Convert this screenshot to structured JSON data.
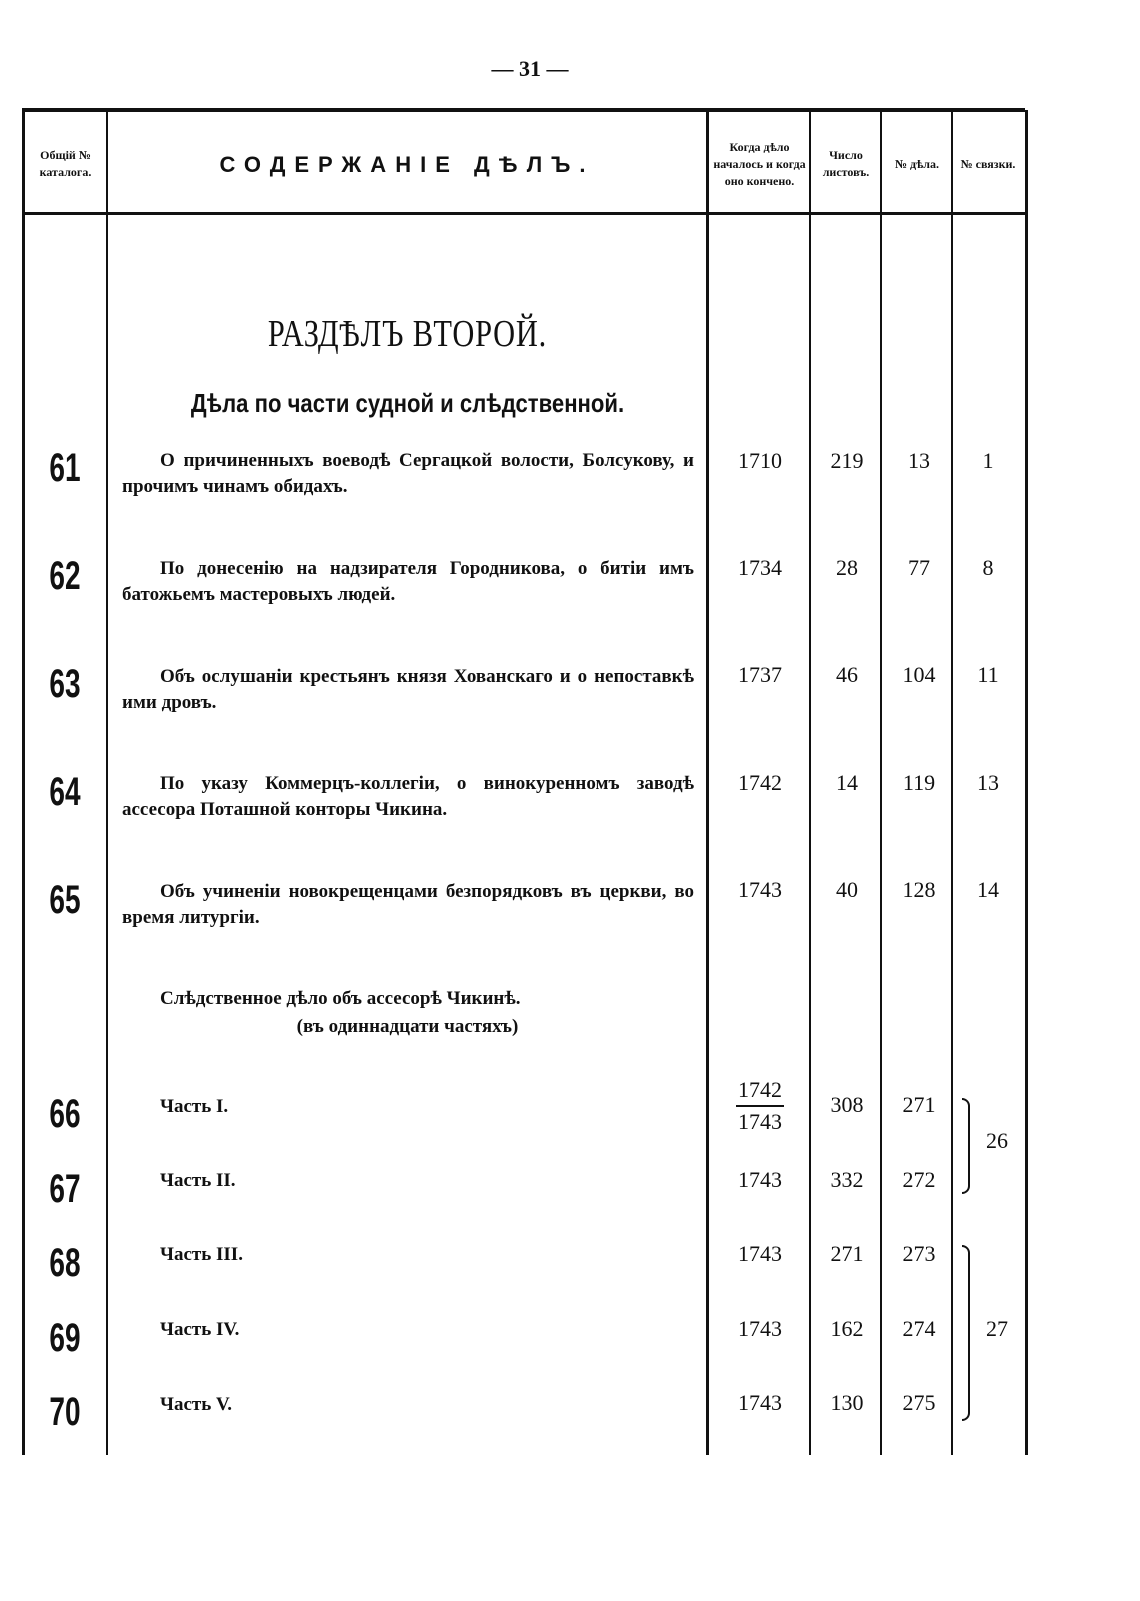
{
  "page_number": "— 31 —",
  "header": {
    "catalog_no": "Общій № каталога.",
    "content": "СОДЕРЖАНІЕ ДѢЛЪ.",
    "dates": "Когда дѣло началось и когда оно кончено.",
    "leaves": "Число листовъ.",
    "case_no": "№ дѣла.",
    "bundle_no": "№ связки."
  },
  "section": {
    "title": "РАЗДѢЛЪ ВТОРОЙ.",
    "subtitle": "Дѣла по части судной и слѣдственной."
  },
  "entries": [
    {
      "no": "61",
      "text": "О причиненныхъ воеводѣ Сергацкой волости, Болсукову, и прочимъ чинамъ обидахъ.",
      "dates": "1710",
      "leaves": "219",
      "case": "13",
      "bundle": "1"
    },
    {
      "no": "62",
      "text": "По донесенію на надзирателя Городникова, о битіи имъ батожьемъ мастеровыхъ людей.",
      "dates": "1734",
      "leaves": "28",
      "case": "77",
      "bundle": "8"
    },
    {
      "no": "63",
      "text": "Объ ослушаніи крестьянъ князя Хованскаго и о непоставкѣ ими дровъ.",
      "dates": "1737",
      "leaves": "46",
      "case": "104",
      "bundle": "11"
    },
    {
      "no": "64",
      "text": "По указу Коммерцъ-коллегіи, о винокуренномъ заводѣ ассесора Поташной конторы Чикина.",
      "dates": "1742",
      "leaves": "14",
      "case": "119",
      "bundle": "13"
    },
    {
      "no": "65",
      "text": "Объ учиненіи новокрещенцами безпорядковъ въ церкви, во время литургіи.",
      "dates": "1743",
      "leaves": "40",
      "case": "128",
      "bundle": "14"
    }
  ],
  "investigation": {
    "title": "Слѣдственное дѣло объ ассесорѣ Чикинѣ.",
    "subtitle": "(въ одиннадцати частяхъ)"
  },
  "parts": [
    {
      "no": "66",
      "text": "Часть I.",
      "date_from": "1742",
      "date_to": "1743",
      "leaves": "308",
      "case": "271"
    },
    {
      "no": "67",
      "text": "Часть II.",
      "dates": "1743",
      "leaves": "332",
      "case": "272"
    },
    {
      "no": "68",
      "text": "Часть III.",
      "dates": "1743",
      "leaves": "271",
      "case": "273"
    },
    {
      "no": "69",
      "text": "Часть IV.",
      "dates": "1743",
      "leaves": "162",
      "case": "274"
    },
    {
      "no": "70",
      "text": "Часть V.",
      "dates": "1743",
      "leaves": "130",
      "case": "275"
    }
  ],
  "bundles": [
    {
      "label": "26",
      "parts": [
        "66",
        "67"
      ]
    },
    {
      "label": "27",
      "parts": [
        "68",
        "69",
        "70"
      ]
    }
  ]
}
